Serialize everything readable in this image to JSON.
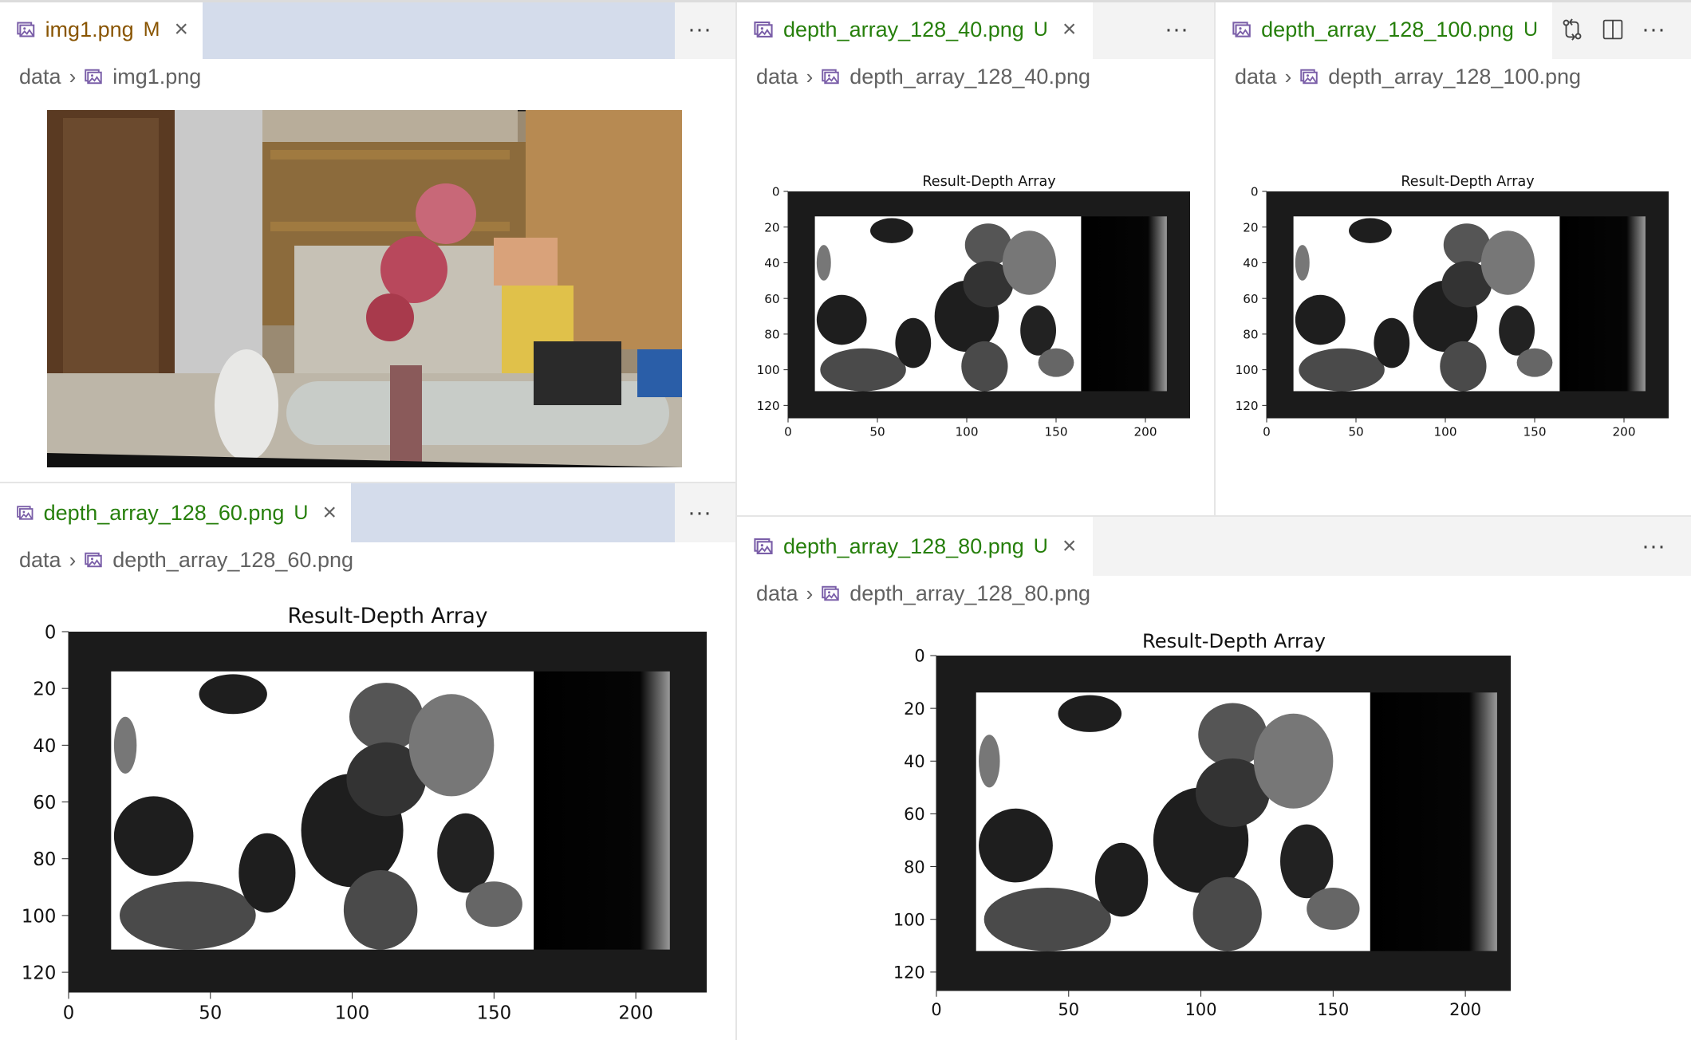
{
  "colors": {
    "modified": "#895503",
    "untracked": "#267f0b",
    "tabfill": "#d4dceb"
  },
  "breadcrumb_root": "data",
  "panes": [
    {
      "id": "p1",
      "tab": "img1.png",
      "status": "M",
      "crumb": "img1.png"
    },
    {
      "id": "p2",
      "tab": "depth_array_128_40.png",
      "status": "U",
      "crumb": "depth_array_128_40.png"
    },
    {
      "id": "p3",
      "tab": "depth_array_128_100.png",
      "status": "U",
      "crumb": "depth_array_128_100.png"
    },
    {
      "id": "p4",
      "tab": "depth_array_128_60.png",
      "status": "U",
      "crumb": "depth_array_128_60.png"
    },
    {
      "id": "p5",
      "tab": "depth_array_128_80.png",
      "status": "U",
      "crumb": "depth_array_128_80.png"
    }
  ],
  "icons": [
    "image-file-icon",
    "close-icon",
    "more-actions-icon",
    "compare-changes-icon",
    "split-editor-icon",
    "chevron-right-icon"
  ],
  "chart_data": [
    {
      "type": "heatmap",
      "title": "Result-Depth Array",
      "xlim": [
        0,
        225
      ],
      "ylim": [
        127,
        0
      ],
      "xticks": [
        0,
        50,
        100,
        150,
        200
      ],
      "yticks": [
        0,
        20,
        40,
        60,
        80,
        100,
        120
      ],
      "file": "depth_array_128_40.png"
    },
    {
      "type": "heatmap",
      "title": "Result-Depth Array",
      "xlim": [
        0,
        225
      ],
      "ylim": [
        127,
        0
      ],
      "xticks": [
        0,
        50,
        100,
        150,
        200
      ],
      "yticks": [
        0,
        20,
        40,
        60,
        80,
        100,
        120
      ],
      "file": "depth_array_128_100.png"
    },
    {
      "type": "heatmap",
      "title": "Result-Depth Array",
      "xlim": [
        0,
        225
      ],
      "ylim": [
        127,
        0
      ],
      "xticks": [
        0,
        50,
        100,
        150,
        200
      ],
      "yticks": [
        0,
        20,
        40,
        60,
        80,
        100,
        120
      ],
      "file": "depth_array_128_60.png"
    },
    {
      "type": "heatmap",
      "title": "Result-Depth Array",
      "xlim": [
        0,
        225
      ],
      "ylim": [
        127,
        0
      ],
      "xticks": [
        0,
        50,
        100,
        150,
        200
      ],
      "yticks": [
        0,
        20,
        40,
        60,
        80,
        100,
        120
      ],
      "file": "depth_array_128_80.png"
    }
  ]
}
